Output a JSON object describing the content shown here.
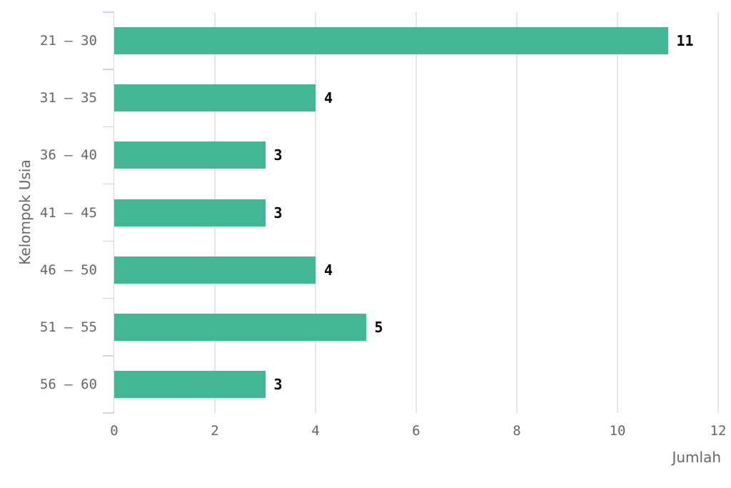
{
  "chart_data": {
    "type": "bar",
    "orientation": "horizontal",
    "title": "",
    "categories": [
      "21 – 30",
      "31 – 35",
      "36 – 40",
      "41 – 45",
      "46 – 50",
      "51 – 55",
      "56 – 60"
    ],
    "values": [
      11,
      4,
      3,
      3,
      4,
      5,
      3
    ],
    "data_labels": [
      "11",
      "4",
      "3",
      "3",
      "4",
      "5",
      "3"
    ],
    "xlabel": "Jumlah",
    "ylabel": "Kelompok Usia",
    "xlim": [
      0,
      12
    ],
    "xticks": [
      0,
      2,
      4,
      6,
      8,
      10,
      12
    ],
    "grid": "vertical-only",
    "legend": "none",
    "colors": {
      "bar": "#41b794",
      "axis_line": "#ccd6eb",
      "gridline": "#e6e6e6",
      "tick_label": "#666666",
      "category_label": "#666666",
      "axis_title": "#666666",
      "data_label": "#000000",
      "background": "#ffffff"
    }
  }
}
